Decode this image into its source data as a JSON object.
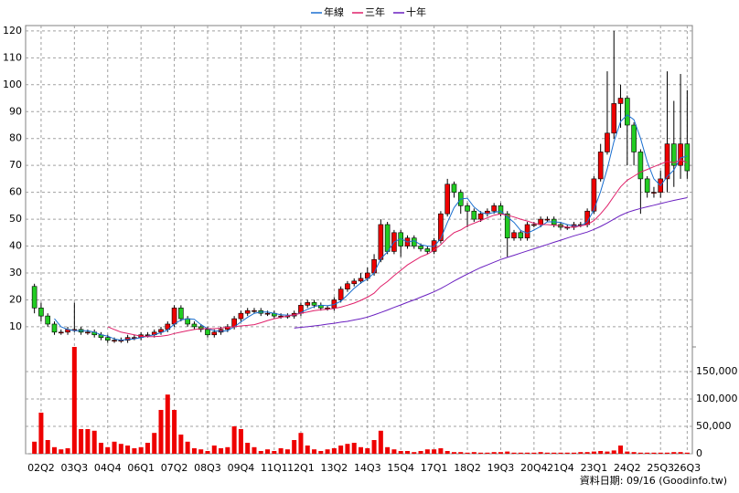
{
  "chart_data": {
    "type": "candlestick",
    "legend": "top",
    "grid": true,
    "up_color": "#ee0000",
    "down_color": "#22cc22",
    "categories": [
      null,
      "02Q2",
      null,
      null,
      null,
      null,
      "03Q3",
      null,
      null,
      null,
      null,
      "04Q4",
      null,
      null,
      null,
      null,
      "06Q1",
      null,
      null,
      null,
      null,
      "07Q2",
      null,
      null,
      null,
      null,
      "08Q3",
      null,
      null,
      null,
      null,
      "09Q4",
      null,
      null,
      null,
      null,
      "11Q1",
      null,
      null,
      null,
      "12Q1",
      null,
      null,
      null,
      null,
      "13Q2",
      null,
      null,
      null,
      null,
      "14Q3",
      null,
      null,
      null,
      null,
      "15Q4",
      null,
      null,
      null,
      null,
      "17Q1",
      null,
      null,
      null,
      null,
      "18Q2",
      null,
      null,
      null,
      null,
      "19Q3",
      null,
      null,
      null,
      null,
      "20Q4",
      null,
      null,
      null,
      "21Q4",
      null,
      null,
      null,
      null,
      "23Q1",
      null,
      null,
      null,
      null,
      "24Q2",
      null,
      null,
      null,
      null,
      "25Q3",
      null,
      null,
      null,
      "26Q3"
    ],
    "open": [
      25,
      17,
      14,
      11,
      8,
      8,
      9,
      9,
      8,
      8,
      7,
      6,
      5,
      5,
      5,
      6,
      6,
      7,
      7,
      8,
      9,
      11,
      17,
      13,
      11,
      10,
      9,
      7,
      8,
      9,
      10,
      13,
      15,
      16,
      16,
      15,
      15,
      14,
      14,
      14,
      15,
      18,
      19,
      18,
      17,
      17,
      20,
      24,
      26,
      27,
      28,
      30,
      35,
      48,
      38,
      45,
      40,
      43,
      40,
      39,
      38,
      42,
      52,
      63,
      60,
      55,
      53,
      50,
      52,
      53,
      55,
      52,
      43,
      45,
      43,
      48,
      48,
      50,
      50,
      48,
      47,
      47,
      48,
      48,
      53,
      65,
      75,
      82,
      93,
      95,
      85,
      75,
      65,
      60,
      60,
      65,
      78,
      70,
      78
    ],
    "high": [
      26,
      19,
      15,
      12,
      9,
      10,
      19,
      10,
      9,
      9,
      8,
      7,
      6,
      6,
      7,
      7,
      8,
      8,
      9,
      10,
      12,
      18,
      18,
      14,
      12,
      11,
      10,
      9,
      10,
      11,
      14,
      16,
      17,
      17,
      17,
      16,
      16,
      15,
      15,
      16,
      19,
      20,
      20,
      19,
      18,
      21,
      25,
      27,
      28,
      30,
      32,
      37,
      50,
      49,
      46,
      46,
      44,
      44,
      41,
      40,
      43,
      53,
      65,
      64,
      61,
      56,
      54,
      53,
      54,
      56,
      56,
      53,
      46,
      46,
      49,
      49,
      51,
      51,
      51,
      49,
      48,
      49,
      49,
      54,
      66,
      78,
      105,
      120,
      100,
      96,
      86,
      76,
      66,
      62,
      68,
      105,
      94,
      104,
      98
    ],
    "low": [
      15,
      12,
      10,
      7,
      7,
      7,
      8,
      7,
      7,
      6,
      5,
      4,
      4,
      4,
      4,
      5,
      5,
      6,
      6,
      7,
      8,
      10,
      12,
      10,
      9,
      8,
      6,
      6,
      7,
      8,
      9,
      12,
      14,
      15,
      14,
      14,
      13,
      13,
      13,
      13,
      14,
      17,
      17,
      16,
      16,
      16,
      19,
      23,
      25,
      26,
      27,
      29,
      34,
      37,
      37,
      36,
      39,
      39,
      38,
      37,
      37,
      41,
      51,
      58,
      52,
      47,
      49,
      49,
      51,
      52,
      51,
      36,
      42,
      42,
      42,
      47,
      47,
      49,
      47,
      46,
      46,
      46,
      47,
      47,
      52,
      64,
      74,
      80,
      84,
      70,
      70,
      52,
      58,
      58,
      58,
      60,
      62,
      65,
      65
    ],
    "close": [
      17,
      14,
      11,
      8,
      8,
      9,
      9,
      8,
      8,
      7,
      6,
      5,
      5,
      5,
      6,
      6,
      7,
      7,
      8,
      9,
      11,
      17,
      13,
      11,
      10,
      9,
      7,
      8,
      9,
      10,
      13,
      15,
      16,
      16,
      15,
      15,
      14,
      14,
      14,
      15,
      18,
      19,
      18,
      17,
      17,
      20,
      24,
      26,
      27,
      28,
      30,
      35,
      48,
      38,
      45,
      40,
      43,
      40,
      39,
      38,
      42,
      52,
      63,
      60,
      55,
      53,
      50,
      52,
      53,
      55,
      52,
      43,
      45,
      43,
      48,
      48,
      50,
      50,
      48,
      47,
      47,
      48,
      48,
      53,
      65,
      75,
      82,
      93,
      95,
      85,
      75,
      65,
      60,
      60,
      65,
      78,
      70,
      78,
      68
    ],
    "ylim": [
      2.5,
      122
    ],
    "yticks": [
      10,
      20,
      30,
      40,
      50,
      60,
      70,
      80,
      90,
      100,
      110,
      120
    ],
    "lines": [
      {
        "name": "年線",
        "color": "#1a6fd0",
        "values": [
          null,
          null,
          null,
          13,
          10,
          9,
          8.5,
          8.5,
          8.5,
          8,
          7,
          6.5,
          5.5,
          5,
          5.3,
          5.5,
          6,
          6.5,
          7,
          7.8,
          8.8,
          11,
          12.5,
          13,
          12.8,
          10.8,
          9.3,
          8.5,
          8.3,
          8.5,
          10,
          11.8,
          13.5,
          15,
          15.5,
          15.5,
          15,
          14.5,
          14.3,
          14.3,
          15.3,
          16.5,
          17.5,
          18,
          17.8,
          18.3,
          19.5,
          21.8,
          24.3,
          26.3,
          27.8,
          30,
          35.3,
          37.8,
          41.5,
          42.8,
          41.5,
          42,
          40.5,
          40,
          39.8,
          42.8,
          48.8,
          54.3,
          57.5,
          57.8,
          54.5,
          52.5,
          52,
          52.5,
          53,
          50.8,
          48.8,
          45.8,
          44.8,
          46,
          47.3,
          49,
          49,
          48.8,
          48,
          47.5,
          47.5,
          49,
          53.5,
          60.3,
          68.8,
          78.8,
          86.3,
          88.8,
          87,
          80,
          71.3,
          65,
          62.5,
          65.8,
          68.3,
          72.8,
          73.5
        ]
      },
      {
        "name": "三年",
        "color": "#e0206a",
        "values": [
          null,
          null,
          null,
          null,
          null,
          null,
          null,
          null,
          null,
          null,
          null,
          10,
          9,
          8,
          7.5,
          7,
          6.5,
          6.3,
          6.3,
          6.5,
          6.8,
          7.5,
          8,
          8.5,
          9,
          9.3,
          9.3,
          9.3,
          9.5,
          9.8,
          10,
          10.3,
          10.5,
          10.8,
          11.5,
          12.3,
          13,
          13.5,
          14,
          14.5,
          15,
          15.5,
          16,
          16.3,
          16.5,
          16.8,
          17.3,
          18,
          18.8,
          19.8,
          21,
          22.5,
          25,
          26.8,
          29,
          31,
          33,
          34.5,
          36,
          37,
          38.5,
          40.5,
          43,
          45,
          46,
          47.5,
          48.5,
          49.5,
          50.5,
          51.5,
          52,
          51.5,
          50.8,
          50,
          49.3,
          48.5,
          48,
          48,
          47.8,
          47.5,
          47,
          47,
          47.5,
          48,
          49.5,
          52,
          55,
          58.5,
          62,
          64.5,
          66,
          67.5,
          68.5,
          69.5,
          70.5,
          71.5,
          71,
          72,
          71
        ]
      },
      {
        "name": "十年",
        "color": "#6a1fc0",
        "values": [
          null,
          null,
          null,
          null,
          null,
          null,
          null,
          null,
          null,
          null,
          null,
          null,
          null,
          null,
          null,
          null,
          null,
          null,
          null,
          null,
          null,
          null,
          null,
          null,
          null,
          null,
          null,
          null,
          null,
          null,
          null,
          null,
          null,
          null,
          null,
          null,
          null,
          null,
          null,
          9.5,
          9.8,
          10,
          10.3,
          10.6,
          11,
          11.3,
          11.7,
          12,
          12.5,
          13,
          13.6,
          14.4,
          15.3,
          16.2,
          17.2,
          18.1,
          19.1,
          20,
          21,
          22,
          23,
          24.2,
          25.6,
          27,
          28.3,
          29.6,
          30.8,
          32,
          33,
          34,
          35,
          35.8,
          36.6,
          37.4,
          38.2,
          39,
          39.8,
          40.6,
          41.4,
          42.2,
          43,
          43.8,
          44.5,
          45.2,
          46.2,
          47.3,
          48.6,
          50,
          51.4,
          52.5,
          53.3,
          54,
          54.6,
          55.2,
          55.8,
          56.4,
          57,
          57.5,
          58
        ]
      }
    ],
    "volume": {
      "color": "#ee0000",
      "ylim": [
        0,
        195000
      ],
      "yticks": [
        0,
        {
          "value": 50000,
          "label": "50,000"
        },
        {
          "value": 100000,
          "label": "100,000"
        },
        {
          "value": 150000,
          "label": "150,000"
        }
      ],
      "values": [
        22000,
        75000,
        25000,
        12000,
        8000,
        10000,
        195000,
        45000,
        45000,
        42000,
        20000,
        12000,
        22000,
        18000,
        15000,
        10000,
        12000,
        20000,
        38000,
        80000,
        108000,
        80000,
        35000,
        22000,
        10000,
        8000,
        5000,
        15000,
        10000,
        12000,
        50000,
        45000,
        20000,
        12000,
        5000,
        8000,
        5000,
        10000,
        8000,
        25000,
        38000,
        15000,
        8000,
        5000,
        8000,
        10000,
        15000,
        18000,
        20000,
        12000,
        10000,
        25000,
        42000,
        12000,
        8000,
        5000,
        5000,
        3000,
        5000,
        8000,
        8000,
        10000,
        5000,
        3000,
        3000,
        2000,
        3000,
        2000,
        2000,
        3000,
        3000,
        4000,
        2000,
        2000,
        2000,
        2000,
        3000,
        2000,
        2000,
        2000,
        2000,
        2000,
        3000,
        3000,
        4000,
        5000,
        4000,
        6000,
        15000,
        4000,
        3000,
        2000,
        2000,
        2000,
        2000,
        2000,
        3000,
        3000,
        2000
      ]
    }
  },
  "footer": "資料日期: 09/16 (Goodinfo.tw)"
}
